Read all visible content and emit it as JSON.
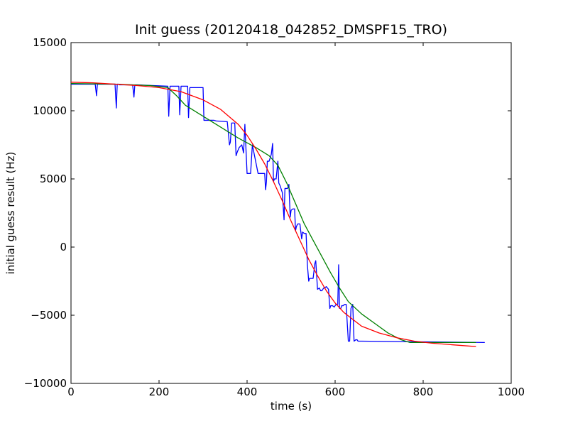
{
  "chart_data": {
    "type": "line",
    "title": "Init guess (20120418_042852_DMSPF15_TRO)",
    "xlabel": "time (s)",
    "ylabel": "initial guess result (Hz)",
    "xlim": [
      0,
      1000
    ],
    "ylim": [
      -10000,
      15000
    ],
    "x_ticks": [
      0,
      200,
      400,
      600,
      800,
      1000
    ],
    "y_ticks": [
      -10000,
      -5000,
      0,
      5000,
      10000,
      15000
    ],
    "x_tick_labels": [
      "0",
      "200",
      "400",
      "600",
      "800",
      "1000"
    ],
    "y_tick_labels": [
      "−10000",
      "−5000",
      "0",
      "5000",
      "10000",
      "15000"
    ],
    "grid": false,
    "legend": "none",
    "series": [
      {
        "color": "#0000ff",
        "x": [
          0,
          55,
          58,
          60,
          62,
          65,
          100,
          103,
          105,
          108,
          110,
          140,
          143,
          145,
          148,
          150,
          220,
          222,
          225,
          228,
          230,
          245,
          247,
          250,
          252,
          265,
          267,
          270,
          272,
          300,
          302,
          305,
          308,
          310,
          325,
          330,
          355,
          360,
          362,
          365,
          368,
          372,
          375,
          378,
          382,
          385,
          388,
          392,
          395,
          398,
          400,
          403,
          405,
          408,
          412,
          425,
          428,
          430,
          432,
          435,
          440,
          442,
          444,
          446,
          450,
          455,
          458,
          460,
          462,
          466,
          470,
          472,
          475,
          480,
          484,
          486,
          490,
          492,
          495,
          498,
          500,
          504,
          508,
          510,
          512,
          515,
          520,
          524,
          526,
          530,
          534,
          537,
          540,
          542,
          545,
          550,
          554,
          556,
          560,
          564,
          567,
          570,
          574,
          576,
          580,
          585,
          588,
          590,
          594,
          598,
          600,
          602,
          606,
          608,
          610,
          613,
          615,
          618,
          622,
          625,
          630,
          633,
          636,
          640,
          643,
          647,
          650,
          652,
          655,
          660,
          940
        ],
        "y": [
          11950,
          11950,
          11100,
          11950,
          11950,
          11950,
          11950,
          10200,
          11950,
          11950,
          11900,
          11900,
          11000,
          11900,
          11900,
          11900,
          11800,
          9600,
          11800,
          11800,
          11800,
          11800,
          9700,
          11800,
          11800,
          11800,
          9500,
          11700,
          11700,
          11700,
          9300,
          9300,
          9300,
          9300,
          9300,
          9250,
          9200,
          7500,
          7700,
          9100,
          9100,
          9100,
          6700,
          7000,
          7300,
          7400,
          7500,
          6900,
          9000,
          6800,
          5400,
          5400,
          5400,
          5400,
          7500,
          5400,
          5400,
          5400,
          5400,
          5400,
          5400,
          4200,
          4800,
          6300,
          6300,
          6800,
          7600,
          4800,
          5000,
          5000,
          6300,
          4700,
          4500,
          4000,
          2000,
          4300,
          4300,
          4300,
          4600,
          2200,
          2700,
          2800,
          2800,
          1200,
          1500,
          1700,
          1700,
          600,
          1100,
          1000,
          1000,
          -1300,
          -2500,
          -2300,
          -2300,
          -2300,
          -1200,
          -1000,
          -3100,
          -3000,
          -3200,
          -3200,
          -3000,
          -3000,
          -2900,
          -3100,
          -4500,
          -4300,
          -4300,
          -4400,
          -4300,
          -4200,
          -4200,
          -1300,
          -4500,
          -4500,
          -4300,
          -4300,
          -4200,
          -4200,
          -6900,
          -6900,
          -4500,
          -4200,
          -6900,
          -6800,
          -6800,
          -6900,
          -6900,
          -6900,
          -7000
        ]
      },
      {
        "color": "#008000",
        "x": [
          0,
          100,
          180,
          220,
          240,
          260,
          300,
          340,
          380,
          420,
          450,
          470,
          490,
          510,
          530,
          550,
          570,
          590,
          610,
          630,
          660,
          690,
          720,
          750,
          770,
          790,
          850,
          900,
          920
        ],
        "y": [
          12000,
          11950,
          11850,
          11700,
          11100,
          10400,
          9600,
          8800,
          8000,
          7300,
          6700,
          6000,
          4700,
          3200,
          1700,
          500,
          -700,
          -1900,
          -3000,
          -4000,
          -4900,
          -5600,
          -6300,
          -6800,
          -7000,
          -7000,
          -7000,
          -7000,
          -7000
        ]
      },
      {
        "color": "#ff0000",
        "x": [
          0,
          50,
          100,
          150,
          200,
          250,
          300,
          340,
          380,
          400,
          420,
          440,
          460,
          480,
          500,
          520,
          540,
          560,
          580,
          600,
          620,
          640,
          660,
          700,
          740,
          780,
          820,
          860,
          900,
          920
        ],
        "y": [
          12100,
          12050,
          11950,
          11850,
          11700,
          11400,
          10800,
          10100,
          9000,
          8200,
          7200,
          6100,
          4800,
          3400,
          1900,
          500,
          -900,
          -2100,
          -3200,
          -4100,
          -4800,
          -5300,
          -5800,
          -6300,
          -6650,
          -6900,
          -7050,
          -7150,
          -7250,
          -7300
        ]
      }
    ]
  }
}
